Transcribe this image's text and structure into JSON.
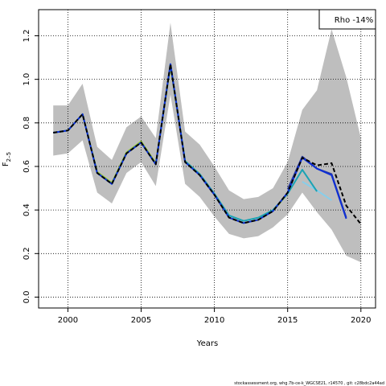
{
  "chart_data": {
    "type": "line",
    "title": "",
    "xlabel": "Years",
    "ylabel": "F",
    "ylabel_subscript": "2–5",
    "xlim": [
      1998,
      2021
    ],
    "ylim": [
      -0.05,
      1.32
    ],
    "x_ticks": [
      2000,
      2005,
      2010,
      2015,
      2020
    ],
    "y_ticks": [
      0.0,
      0.2,
      0.4,
      0.6,
      0.8,
      1.0,
      1.2
    ],
    "y_tick_labels": [
      "0.0",
      "0.2",
      "0.4",
      "0.6",
      "0.8",
      "1.0",
      "1.2"
    ],
    "grid": true,
    "legend_text": "Rho -14%",
    "legend_position": "top-right",
    "footer": "stockassessment.org, whg.7b-ce-k_WGCSE21, r14570 , git: c28bdc2a44ad",
    "colors": {
      "band": "#bebebe",
      "base": "#000000",
      "peel_1": "#0e2fd6",
      "peel_2": "#2c3b9c",
      "peel_3": "#1aa3b4",
      "peel_4": "#87ceeb",
      "peel_5": "#9acd32"
    },
    "confidence_band": {
      "x": [
        1999,
        2000,
        2001,
        2002,
        2003,
        2004,
        2005,
        2006,
        2007,
        2008,
        2009,
        2010,
        2011,
        2012,
        2013,
        2014,
        2015,
        2016,
        2017,
        2018,
        2019,
        2020
      ],
      "upper": [
        0.88,
        0.88,
        0.98,
        0.69,
        0.63,
        0.78,
        0.83,
        0.73,
        1.26,
        0.76,
        0.7,
        0.6,
        0.49,
        0.45,
        0.46,
        0.5,
        0.62,
        0.86,
        0.95,
        1.23,
        1.01,
        0.73
      ],
      "lower": [
        0.65,
        0.66,
        0.72,
        0.48,
        0.43,
        0.57,
        0.62,
        0.51,
        0.93,
        0.52,
        0.46,
        0.37,
        0.29,
        0.27,
        0.28,
        0.32,
        0.38,
        0.48,
        0.39,
        0.31,
        0.19,
        0.16
      ]
    },
    "series": [
      {
        "key": "base",
        "style": "dashed",
        "x": [
          1999,
          2000,
          2001,
          2002,
          2003,
          2004,
          2005,
          2006,
          2007,
          2008,
          2009,
          2010,
          2011,
          2012,
          2013,
          2014,
          2015,
          2016,
          2017,
          2018,
          2019,
          2020
        ],
        "values": [
          0.755,
          0.765,
          0.84,
          0.57,
          0.52,
          0.66,
          0.71,
          0.61,
          1.07,
          0.62,
          0.56,
          0.47,
          0.365,
          0.34,
          0.355,
          0.395,
          0.48,
          0.64,
          0.605,
          0.615,
          0.42,
          0.335
        ]
      },
      {
        "key": "peel_1",
        "style": "solid",
        "x": [
          1999,
          2000,
          2001,
          2002,
          2003,
          2004,
          2005,
          2006,
          2007,
          2008,
          2009,
          2010,
          2011,
          2012,
          2013,
          2014,
          2015,
          2016,
          2017,
          2018,
          2019
        ],
        "values": [
          0.755,
          0.765,
          0.84,
          0.57,
          0.52,
          0.66,
          0.71,
          0.61,
          1.07,
          0.62,
          0.56,
          0.47,
          0.365,
          0.34,
          0.355,
          0.395,
          0.48,
          0.64,
          0.59,
          0.56,
          0.36
        ]
      },
      {
        "key": "peel_2",
        "style": "solid",
        "x": [
          2015,
          2016,
          2017,
          2018,
          2019
        ],
        "values": [
          0.495,
          0.645,
          0.59,
          0.565,
          0.365
        ]
      },
      {
        "key": "peel_3",
        "style": "solid",
        "x": [
          1999,
          2000,
          2001,
          2002,
          2003,
          2004,
          2005,
          2006,
          2007,
          2008,
          2009,
          2010,
          2011,
          2012,
          2013,
          2014,
          2015,
          2016,
          2017
        ],
        "values": [
          0.755,
          0.765,
          0.84,
          0.57,
          0.52,
          0.66,
          0.71,
          0.61,
          1.07,
          0.625,
          0.565,
          0.475,
          0.375,
          0.35,
          0.365,
          0.4,
          0.475,
          0.585,
          0.485
        ]
      },
      {
        "key": "peel_4",
        "style": "solid",
        "x": [
          2016,
          2017,
          2018
        ],
        "values": [
          0.53,
          0.49,
          0.445
        ]
      },
      {
        "key": "peel_5",
        "style": "solid",
        "x": [
          1999,
          2000,
          2001,
          2002,
          2003,
          2004,
          2005,
          2006,
          2007,
          2008,
          2009,
          2010,
          2011,
          2012,
          2013,
          2014,
          2015
        ],
        "values": [
          0.755,
          0.765,
          0.84,
          0.575,
          0.525,
          0.665,
          0.715,
          0.615,
          1.06,
          0.625,
          0.565,
          0.47,
          0.365,
          0.34,
          0.355,
          0.395,
          0.475
        ]
      }
    ]
  }
}
